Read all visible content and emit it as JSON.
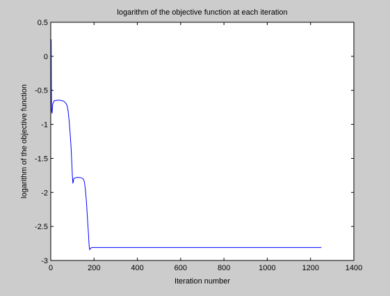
{
  "chart_data": {
    "type": "line",
    "title": "logarithm of the objective function at each iteration",
    "xlabel": "Iteration number",
    "ylabel": "logarithm of the objective function",
    "xlim": [
      0,
      1400
    ],
    "ylim": [
      -3,
      0.5
    ],
    "xticks": [
      0,
      200,
      400,
      600,
      800,
      1000,
      1200,
      1400
    ],
    "xtick_labels": [
      "0",
      "200",
      "400",
      "600",
      "800",
      "1000",
      "1200",
      "1400"
    ],
    "yticks": [
      0.5,
      0,
      -0.5,
      -1,
      -1.5,
      -2,
      -2.5,
      -3
    ],
    "ytick_labels": [
      "0.5",
      "0",
      "-0.5",
      "-1",
      "-1.5",
      "-2",
      "-2.5",
      "-3"
    ],
    "grid": false,
    "background": "#cccccc",
    "axes_color": "#ffffff",
    "series": [
      {
        "color": "#0000ff",
        "x": [
          1,
          2,
          3,
          4,
          6,
          9,
          12,
          15,
          18,
          20,
          24,
          30,
          40,
          50,
          60,
          70,
          75,
          80,
          85,
          90,
          94,
          97,
          100,
          102,
          104,
          106,
          110,
          120,
          130,
          140,
          150,
          155,
          160,
          165,
          170,
          174,
          176,
          178,
          180,
          184,
          190,
          200,
          300,
          400,
          500,
          600,
          700,
          800,
          900,
          1000,
          1100,
          1200,
          1250
        ],
        "y": [
          0.2,
          0.25,
          -0.5,
          -0.8,
          -0.84,
          -0.7,
          -0.68,
          -0.66,
          -0.65,
          -0.65,
          -0.65,
          -0.645,
          -0.645,
          -0.65,
          -0.66,
          -0.69,
          -0.72,
          -0.8,
          -0.95,
          -1.15,
          -1.35,
          -1.55,
          -1.75,
          -1.86,
          -1.85,
          -1.8,
          -1.79,
          -1.78,
          -1.78,
          -1.785,
          -1.8,
          -1.84,
          -1.95,
          -2.15,
          -2.4,
          -2.6,
          -2.72,
          -2.8,
          -2.84,
          -2.82,
          -2.81,
          -2.81,
          -2.81,
          -2.81,
          -2.81,
          -2.81,
          -2.81,
          -2.81,
          -2.81,
          -2.81,
          -2.81,
          -2.81,
          -2.81
        ]
      }
    ]
  }
}
